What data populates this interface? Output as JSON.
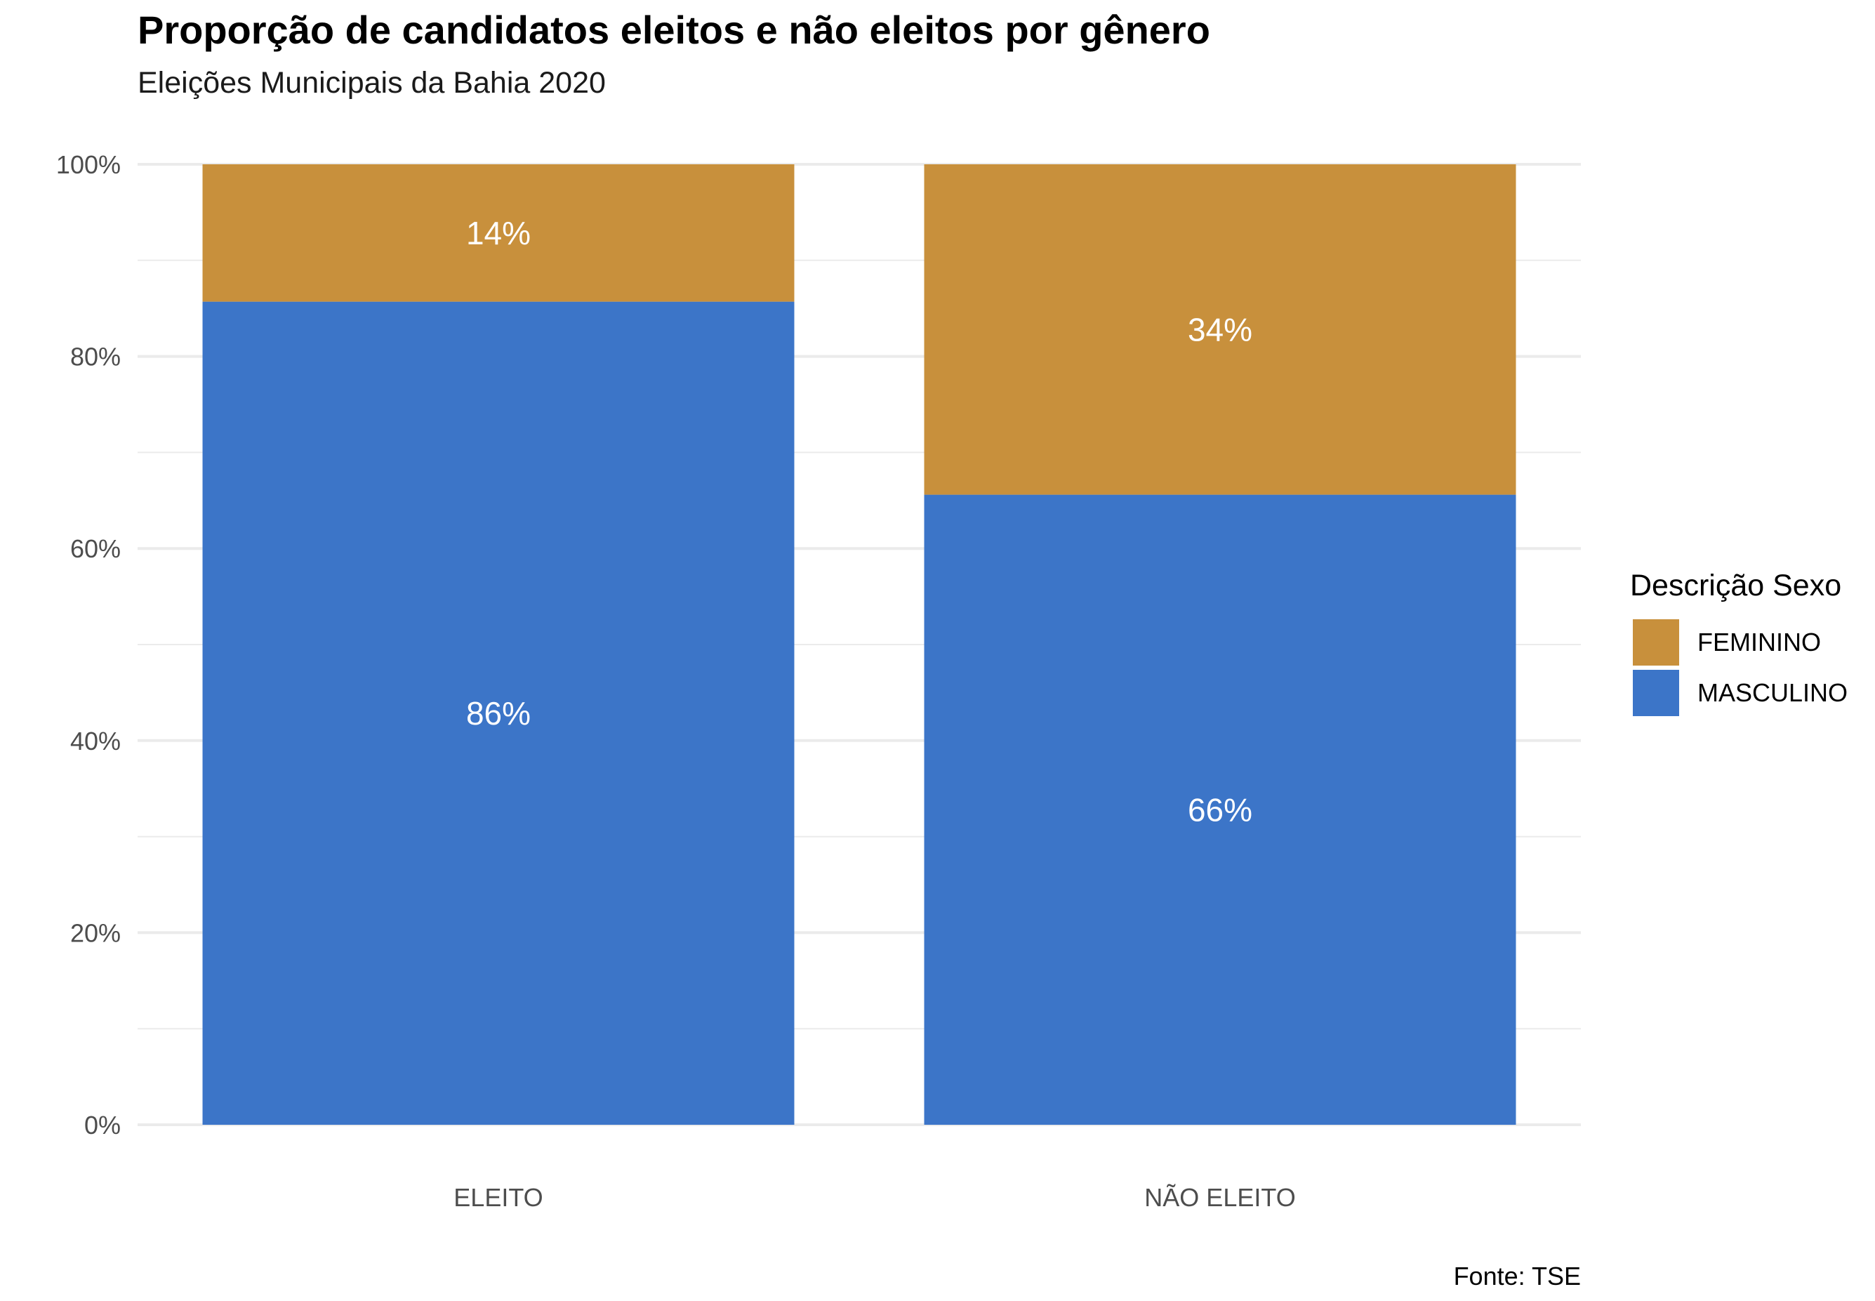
{
  "chart_data": {
    "type": "bar",
    "stacked": true,
    "title": "Proporção de candidatos eleitos e não eleitos por gênero",
    "subtitle": "Eleições Municipais da Bahia 2020",
    "xlabel": "",
    "ylabel": "",
    "categories": [
      "ELEITO",
      "NÃO ELEITO"
    ],
    "series": [
      {
        "name": "MASCULINO",
        "values": [
          0.857,
          0.656
        ],
        "labels": [
          "86%",
          "66%"
        ],
        "color": "#3c75c8"
      },
      {
        "name": "FEMININO",
        "values": [
          0.143,
          0.344
        ],
        "labels": [
          "14%",
          "34%"
        ],
        "color": "#c8903c"
      }
    ],
    "ylim": [
      0,
      1
    ],
    "y_ticks": [
      0,
      0.2,
      0.4,
      0.6,
      0.8,
      1.0
    ],
    "y_tick_labels": [
      "0%",
      "20%",
      "40%",
      "60%",
      "80%",
      "100%"
    ],
    "grid": true,
    "legend": {
      "title": "Descrição Sexo",
      "position": "right",
      "items": [
        {
          "label": "FEMININO",
          "color": "#c8903c"
        },
        {
          "label": "MASCULINO",
          "color": "#3c75c8"
        }
      ]
    },
    "caption": "Fonte: TSE"
  }
}
